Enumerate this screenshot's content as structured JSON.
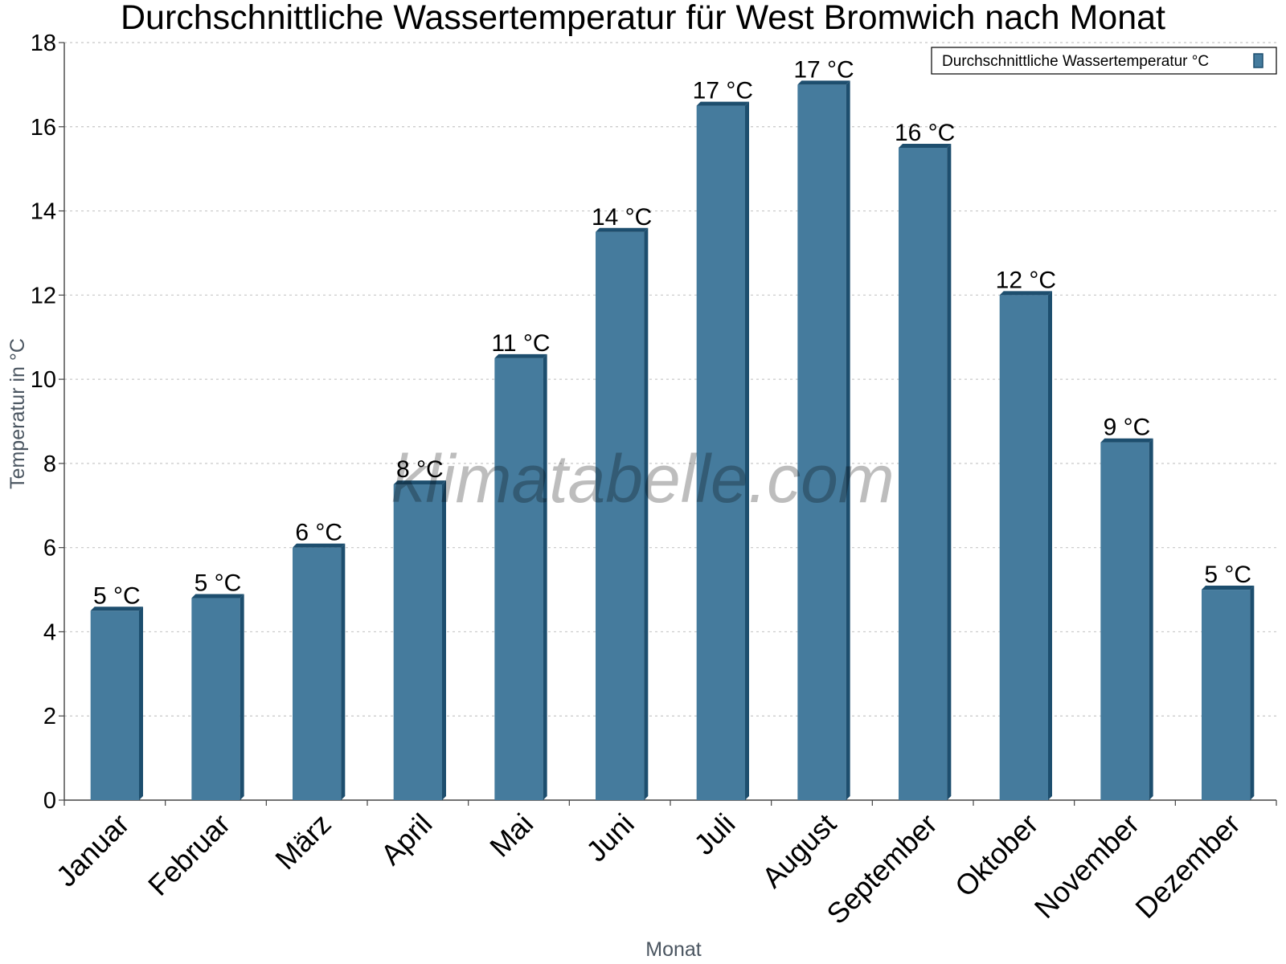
{
  "chart_data": {
    "type": "bar",
    "title": "Durchschnittliche Wassertemperatur für West Bromwich nach Monat",
    "xlabel": "Monat",
    "ylabel": "Temperatur in °C",
    "categories": [
      "Januar",
      "Februar",
      "März",
      "April",
      "Mai",
      "Juni",
      "Juli",
      "August",
      "September",
      "Oktober",
      "November",
      "Dezember"
    ],
    "series": [
      {
        "name": "Durchschnittliche Wassertemperatur °C",
        "values": [
          4.5,
          4.8,
          6.0,
          7.5,
          10.5,
          13.5,
          16.5,
          17.0,
          15.5,
          12.0,
          8.5,
          5.0
        ],
        "labels": [
          "5 °C",
          "5 °C",
          "6 °C",
          "8 °C",
          "11 °C",
          "14 °C",
          "17 °C",
          "17 °C",
          "16 °C",
          "12 °C",
          "9 °C",
          "5 °C"
        ]
      }
    ],
    "ylim": [
      0,
      18
    ],
    "yticks": [
      0,
      2,
      4,
      6,
      8,
      10,
      12,
      14,
      16,
      18
    ],
    "grid": true,
    "legend_position": "top-right",
    "watermark": "klimatabelle.com",
    "colors": {
      "bar": "#457b9d",
      "bar_side": "#1d4e6e",
      "bar_top": "#1d4e6e",
      "grid": "#c8c8c8",
      "axis": "#444444"
    }
  }
}
